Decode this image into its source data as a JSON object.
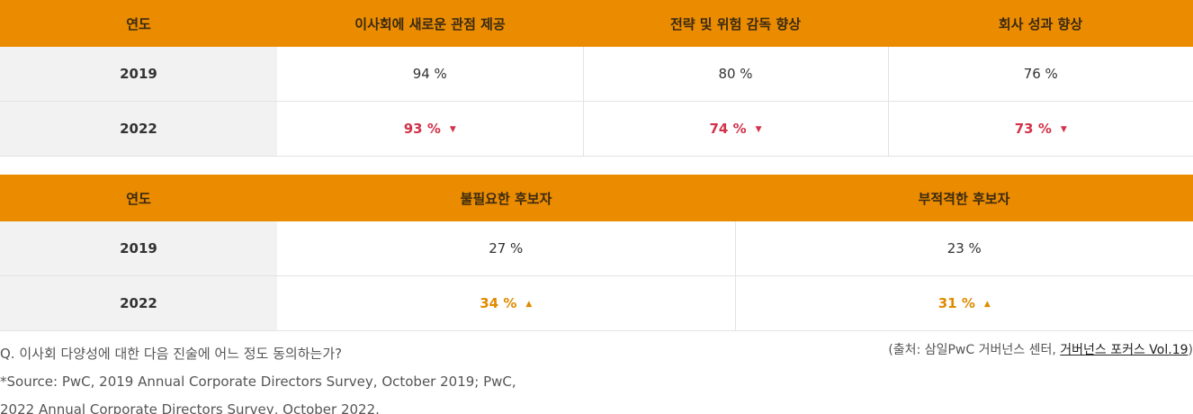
{
  "table1": {
    "headers": [
      "연도",
      "이사회에 새로운 관점 제공",
      "전략 및 위험 감독 향상",
      "회사 성과 향상"
    ],
    "rows": [
      {
        "year": "2019",
        "values": [
          "94 %",
          "80 %",
          "76 %"
        ]
      },
      {
        "year": "2022",
        "values": [
          "93 %",
          "74 %",
          "73 %"
        ],
        "trend": "down",
        "arrow": "▼"
      }
    ]
  },
  "table2": {
    "headers": [
      "연도",
      "불필요한 후보자",
      "부적격한 후보자"
    ],
    "rows": [
      {
        "year": "2019",
        "values": [
          "27 %",
          "23 %"
        ]
      },
      {
        "year": "2022",
        "values": [
          "34 %",
          "31 %"
        ],
        "trend": "up",
        "arrow": "▲"
      }
    ]
  },
  "colors": {
    "header_bg": "#ea8b00",
    "decrease": "#d1334a",
    "increase": "#e08a00",
    "year_bg": "#f2f2f2"
  },
  "footer": {
    "question": "Q. 이사회 다양성에 대한 다음 진술에 어느 정도 동의하는가?",
    "source_note_1": "*Source: PwC, 2019 Annual Corporate Directors Survey, October 2019; PwC,",
    "source_note_2": "2022 Annual Corporate Directors Survey, October 2022.",
    "source_prefix": "(출처: 삼일PwC 거버넌스 센터, ",
    "source_link": "거버넌스 포커스 Vol.19",
    "source_suffix": ")"
  }
}
